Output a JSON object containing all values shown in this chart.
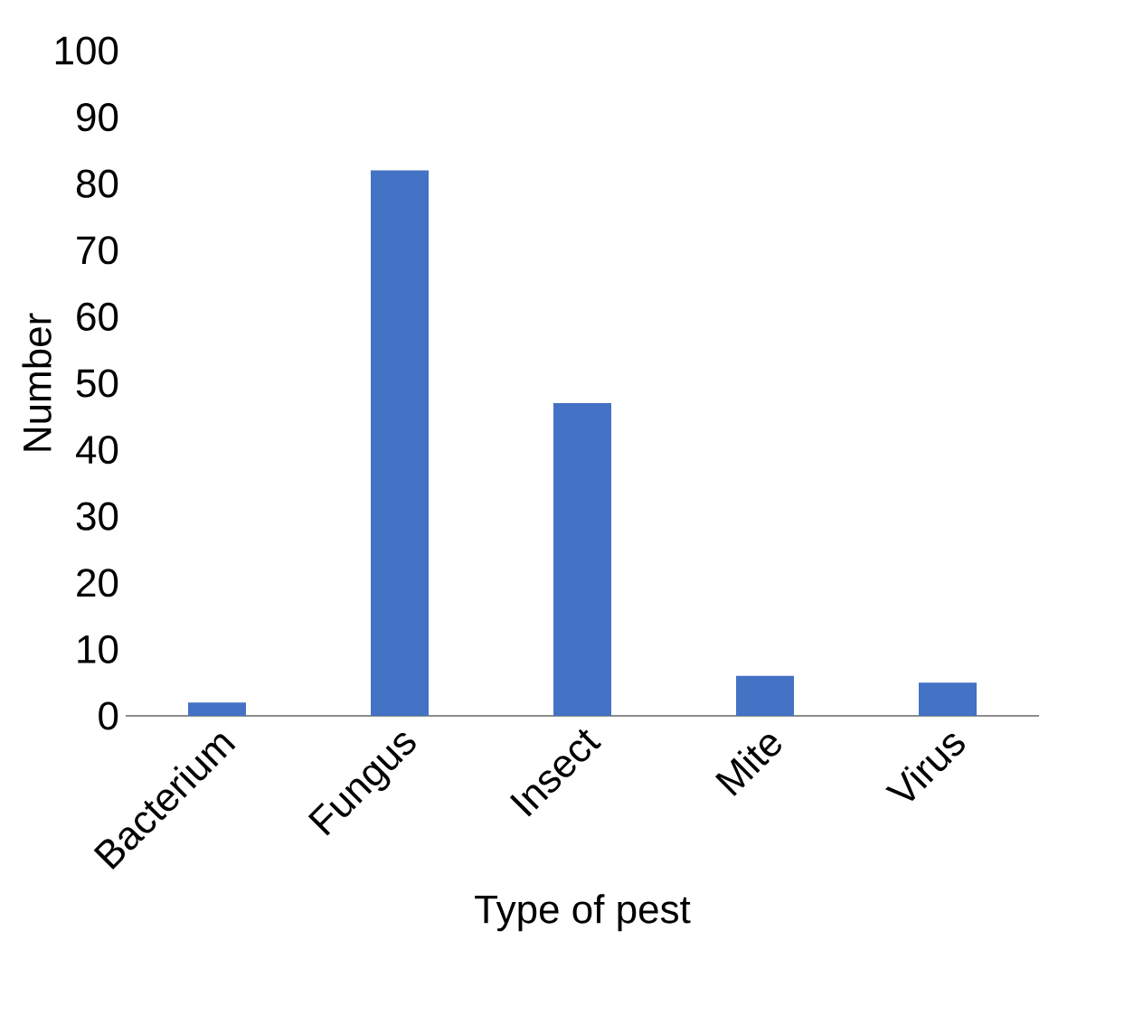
{
  "chart_data": {
    "type": "bar",
    "xlabel": "Type of pest",
    "ylabel": "Number",
    "categories": [
      "Bacterium",
      "Fungus",
      "Insect",
      "Mite",
      "Virus"
    ],
    "values": [
      2,
      82,
      47,
      6,
      5
    ],
    "color": "#4472c4",
    "ylim": [
      0,
      100
    ],
    "yticks": [
      0,
      10,
      20,
      30,
      40,
      50,
      60,
      70,
      80,
      90,
      100
    ]
  }
}
